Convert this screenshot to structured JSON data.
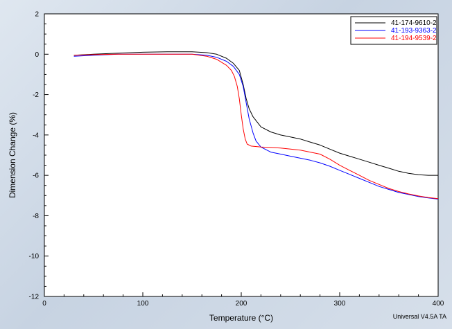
{
  "chart_data": {
    "type": "line",
    "xlabel": "Temperature (°C)",
    "ylabel": "Dimension Change (%)",
    "xlim": [
      0,
      400
    ],
    "ylim": [
      -12,
      2
    ],
    "x_ticks": [
      "0",
      "100",
      "200",
      "300",
      "400"
    ],
    "y_ticks": [
      "2",
      "0",
      "-2",
      "-4",
      "-6",
      "-8",
      "-10",
      "-12"
    ],
    "legend_position": "top-right",
    "grid": false,
    "series": [
      {
        "name": "41-174-9610-2",
        "color": "#000000",
        "x": [
          30,
          50,
          75,
          100,
          125,
          150,
          165,
          175,
          185,
          192,
          198,
          202,
          205,
          208,
          212,
          220,
          230,
          240,
          250,
          260,
          270,
          280,
          290,
          300,
          310,
          320,
          330,
          340,
          350,
          360,
          370,
          380,
          390,
          400
        ],
        "y": [
          -0.05,
          0.0,
          0.05,
          0.1,
          0.12,
          0.12,
          0.08,
          0.0,
          -0.2,
          -0.45,
          -0.8,
          -1.5,
          -2.2,
          -2.7,
          -3.1,
          -3.6,
          -3.85,
          -4.0,
          -4.1,
          -4.2,
          -4.35,
          -4.5,
          -4.7,
          -4.9,
          -5.05,
          -5.2,
          -5.35,
          -5.5,
          -5.65,
          -5.8,
          -5.9,
          -5.97,
          -6.0,
          -6.0
        ]
      },
      {
        "name": "41-193-9363-2",
        "color": "#0000ff",
        "x": [
          30,
          50,
          75,
          100,
          125,
          150,
          165,
          175,
          185,
          192,
          198,
          202,
          205,
          208,
          212,
          215,
          220,
          230,
          240,
          250,
          260,
          270,
          280,
          290,
          300,
          310,
          320,
          330,
          340,
          350,
          360,
          370,
          380,
          390,
          400
        ],
        "y": [
          -0.1,
          -0.05,
          0.0,
          0.0,
          0.0,
          0.0,
          -0.05,
          -0.15,
          -0.35,
          -0.6,
          -1.0,
          -1.6,
          -2.4,
          -3.2,
          -3.9,
          -4.3,
          -4.6,
          -4.85,
          -4.95,
          -5.05,
          -5.15,
          -5.25,
          -5.38,
          -5.55,
          -5.75,
          -5.95,
          -6.15,
          -6.35,
          -6.55,
          -6.7,
          -6.85,
          -6.95,
          -7.05,
          -7.12,
          -7.18
        ]
      },
      {
        "name": "41-194-9539-2",
        "color": "#ff0000",
        "x": [
          30,
          50,
          75,
          100,
          125,
          150,
          165,
          175,
          180,
          185,
          190,
          193,
          196,
          198,
          200,
          202,
          204,
          206,
          210,
          220,
          230,
          240,
          250,
          260,
          270,
          280,
          290,
          300,
          310,
          320,
          330,
          340,
          350,
          360,
          370,
          380,
          390,
          400
        ],
        "y": [
          -0.05,
          -0.02,
          0.0,
          0.0,
          0.0,
          0.0,
          -0.1,
          -0.25,
          -0.4,
          -0.55,
          -0.8,
          -1.1,
          -1.6,
          -2.2,
          -3.0,
          -3.7,
          -4.2,
          -4.45,
          -4.55,
          -4.6,
          -4.62,
          -4.65,
          -4.7,
          -4.75,
          -4.85,
          -4.95,
          -5.2,
          -5.5,
          -5.75,
          -6.0,
          -6.25,
          -6.45,
          -6.65,
          -6.8,
          -6.92,
          -7.02,
          -7.1,
          -7.15
        ]
      }
    ]
  },
  "footer_note": "Universal V4.5A TA"
}
